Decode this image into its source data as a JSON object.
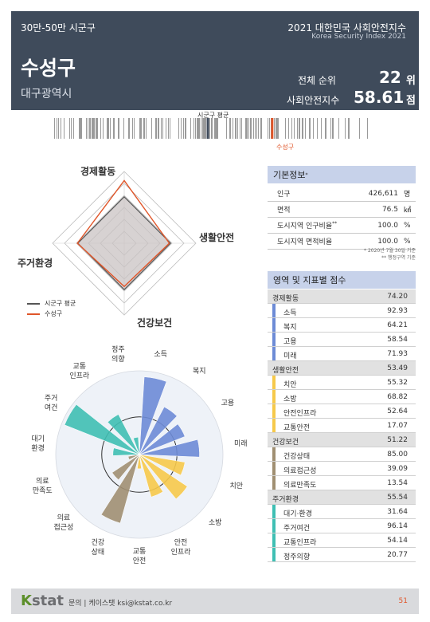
{
  "header": {
    "category": "30만-50만 시군구",
    "city": "수성구",
    "region": "대구광역시",
    "title": "2021 대한민국 사회안전지수",
    "subtitle": "Korea Security Index 2021",
    "rank_label": "전체 순위",
    "rank_value": "22",
    "rank_unit": "위",
    "score_label": "사회안전지수",
    "score_value": "58.61",
    "score_unit": "점"
  },
  "distribution": {
    "avg_label": "시군구 평균",
    "city_label": "수성구",
    "avg_marker_pos": 0.47,
    "city_marker_pos": 0.665
  },
  "radar": {
    "axes": [
      "경제활동",
      "생활안전",
      "건강보건",
      "주거환경"
    ],
    "avg_values": [
      55,
      55,
      55,
      55
    ],
    "city_values": [
      74.2,
      53.49,
      51.22,
      55.54
    ],
    "max": 85,
    "legend": [
      {
        "name": "시군구 평균",
        "color": "#555555"
      },
      {
        "name": "수성구",
        "color": "#e0562a"
      }
    ]
  },
  "rose": {
    "labels": [
      "소득",
      "복지",
      "고용",
      "미래",
      "치안",
      "소방",
      "안전인프라",
      "교통안전",
      "건강상태",
      "의료접근성",
      "의료만족도",
      "대기환경",
      "주거여건",
      "교통인프라",
      "정주의향"
    ],
    "values": [
      92.93,
      64.21,
      58.54,
      71.93,
      55.32,
      68.82,
      52.64,
      17.07,
      85.0,
      39.09,
      13.54,
      31.64,
      96.14,
      54.14,
      20.77
    ],
    "colors": [
      "#6d8bd6",
      "#6d8bd6",
      "#6d8bd6",
      "#6d8bd6",
      "#f6c94a",
      "#f6c94a",
      "#f6c94a",
      "#f6c94a",
      "#a08f72",
      "#a08f72",
      "#a08f72",
      "#3fbfb3",
      "#3fbfb3",
      "#3fbfb3",
      "#3fbfb3"
    ]
  },
  "basic_info": {
    "title": "기본정보",
    "rows": [
      {
        "label": "인구",
        "value": "426,611",
        "unit": "명"
      },
      {
        "label": "면적",
        "value": "76.5",
        "unit": "㎢"
      },
      {
        "label": "도시지역 인구비율",
        "value": "100.0",
        "unit": "%"
      },
      {
        "label": "도시지역 면적비율",
        "value": "100.0",
        "unit": "%"
      }
    ],
    "note1": "* 2020년 7월 30일 기준",
    "note2": "** 행정구역 기준"
  },
  "scores": {
    "title": "영역 및 지표별 점수",
    "rows": [
      {
        "label": "경제활동",
        "value": "74.20",
        "type": "cat",
        "color": ""
      },
      {
        "label": "소득",
        "value": "92.93",
        "type": "sub",
        "color": "#6d8bd6"
      },
      {
        "label": "복지",
        "value": "64.21",
        "type": "sub",
        "color": "#6d8bd6"
      },
      {
        "label": "고용",
        "value": "58.54",
        "type": "sub",
        "color": "#6d8bd6"
      },
      {
        "label": "미래",
        "value": "71.93",
        "type": "sub",
        "color": "#6d8bd6"
      },
      {
        "label": "생활안전",
        "value": "53.49",
        "type": "cat",
        "color": ""
      },
      {
        "label": "치안",
        "value": "55.32",
        "type": "sub",
        "color": "#f6c94a"
      },
      {
        "label": "소방",
        "value": "68.82",
        "type": "sub",
        "color": "#f6c94a"
      },
      {
        "label": "안전인프라",
        "value": "52.64",
        "type": "sub",
        "color": "#f6c94a"
      },
      {
        "label": "교통안전",
        "value": "17.07",
        "type": "sub",
        "color": "#f6c94a"
      },
      {
        "label": "건강보건",
        "value": "51.22",
        "type": "cat",
        "color": ""
      },
      {
        "label": "건강상태",
        "value": "85.00",
        "type": "sub",
        "color": "#a08f72"
      },
      {
        "label": "의료접근성",
        "value": "39.09",
        "type": "sub",
        "color": "#a08f72"
      },
      {
        "label": "의료만족도",
        "value": "13.54",
        "type": "sub",
        "color": "#a08f72"
      },
      {
        "label": "주거환경",
        "value": "55.54",
        "type": "cat",
        "color": ""
      },
      {
        "label": "대기·환경",
        "value": "31.64",
        "type": "sub",
        "color": "#3fbfb3"
      },
      {
        "label": "주거여건",
        "value": "96.14",
        "type": "sub",
        "color": "#3fbfb3"
      },
      {
        "label": "교통인프라",
        "value": "54.14",
        "type": "sub",
        "color": "#3fbfb3"
      },
      {
        "label": "정주의향",
        "value": "20.77",
        "type": "sub",
        "color": "#3fbfb3"
      }
    ]
  },
  "footer": {
    "logo_k": "K",
    "logo_rest": "stat",
    "contact": "문의 | 케이스탯 ksi@kstat.co.kr",
    "page": "51"
  }
}
